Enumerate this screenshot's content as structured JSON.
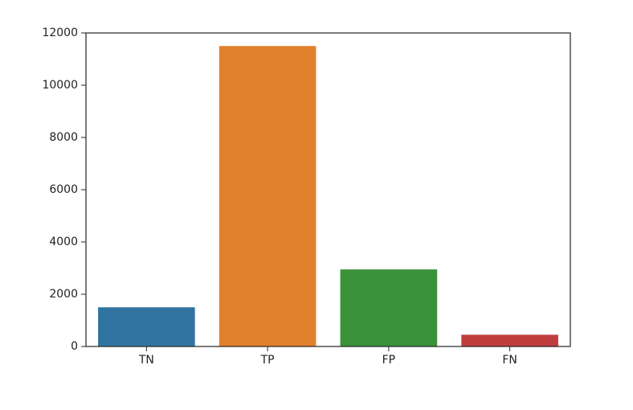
{
  "chart_data": {
    "type": "bar",
    "title": "",
    "xlabel": "",
    "ylabel": "",
    "categories": [
      "TN",
      "TP",
      "FP",
      "FN"
    ],
    "values": [
      1500,
      11500,
      2950,
      450
    ],
    "colors": [
      "#3274a1",
      "#e1812c",
      "#3a923a",
      "#c03d3e"
    ],
    "ylim": [
      0,
      12000
    ],
    "yticks": [
      0,
      2000,
      4000,
      6000,
      8000,
      10000,
      12000
    ],
    "ytick_labels": [
      "0",
      "2000",
      "4000",
      "6000",
      "8000",
      "10000",
      "12000"
    ],
    "grid": false,
    "legend": "none"
  }
}
